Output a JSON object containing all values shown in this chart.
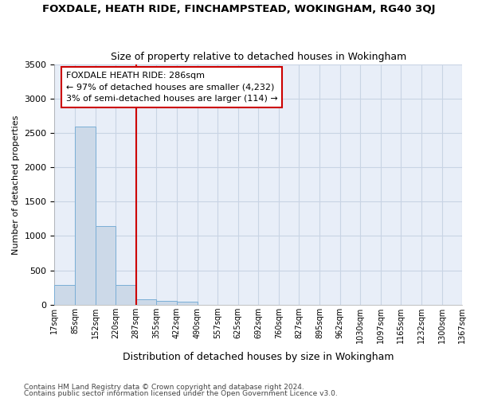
{
  "title": "FOXDALE, HEATH RIDE, FINCHAMPSTEAD, WOKINGHAM, RG40 3QJ",
  "subtitle": "Size of property relative to detached houses in Wokingham",
  "xlabel": "Distribution of detached houses by size in Wokingham",
  "ylabel": "Number of detached properties",
  "bar_color": "#ccd9e8",
  "bar_edge_color": "#7aaed6",
  "grid_color": "#c8d4e4",
  "background_color": "#e8eef8",
  "vline_x": 287,
  "vline_color": "#cc0000",
  "annotation_box_color": "#cc0000",
  "annotation_lines": [
    "FOXDALE HEATH RIDE: 286sqm",
    "← 97% of detached houses are smaller (4,232)",
    "3% of semi-detached houses are larger (114) →"
  ],
  "bin_edges": [
    17,
    85,
    152,
    220,
    287,
    355,
    422,
    490,
    557,
    625,
    692,
    760,
    827,
    895,
    962,
    1030,
    1097,
    1165,
    1232,
    1300,
    1367
  ],
  "bin_counts": [
    280,
    2590,
    1140,
    290,
    80,
    55,
    40,
    0,
    0,
    0,
    0,
    0,
    0,
    0,
    0,
    0,
    0,
    0,
    0,
    0
  ],
  "tick_labels": [
    "17sqm",
    "85sqm",
    "152sqm",
    "220sqm",
    "287sqm",
    "355sqm",
    "422sqm",
    "490sqm",
    "557sqm",
    "625sqm",
    "692sqm",
    "760sqm",
    "827sqm",
    "895sqm",
    "962sqm",
    "1030sqm",
    "1097sqm",
    "1165sqm",
    "1232sqm",
    "1300sqm",
    "1367sqm"
  ],
  "ylim": [
    0,
    3500
  ],
  "yticks": [
    0,
    500,
    1000,
    1500,
    2000,
    2500,
    3000,
    3500
  ],
  "footnote1": "Contains HM Land Registry data © Crown copyright and database right 2024.",
  "footnote2": "Contains public sector information licensed under the Open Government Licence v3.0."
}
